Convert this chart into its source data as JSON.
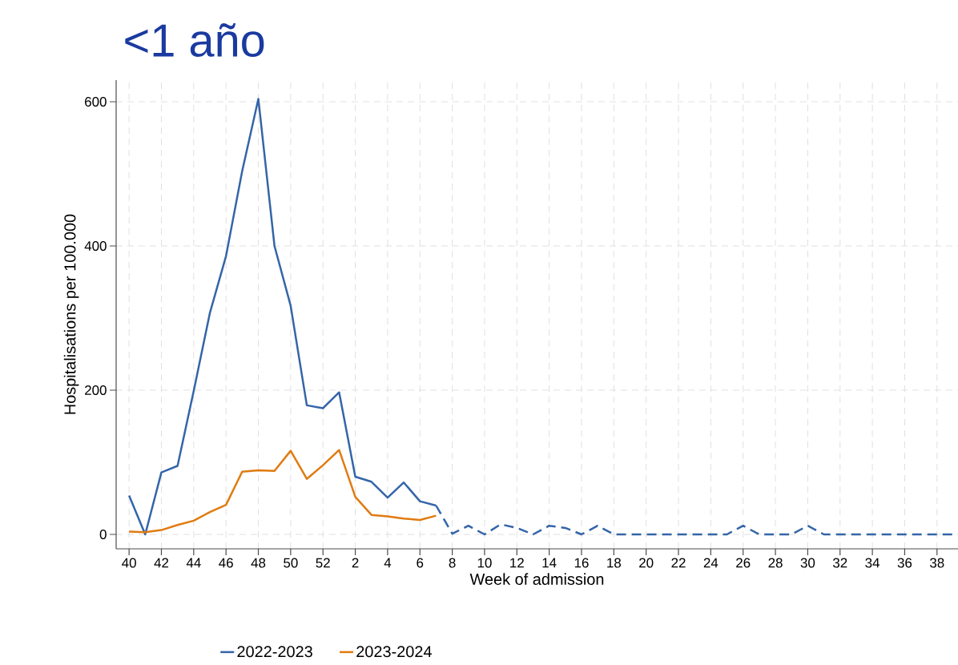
{
  "chart_data": {
    "type": "line",
    "title": "<1 año",
    "xlabel": "Week of admission",
    "ylabel": "Hospitalisations per 100.000",
    "categories": [
      "40",
      null,
      "42",
      null,
      "44",
      null,
      "46",
      null,
      "48",
      null,
      "50",
      null,
      "52",
      null,
      "2",
      null,
      "4",
      null,
      "6",
      null,
      "8",
      null,
      "10",
      null,
      "12",
      null,
      "14",
      null,
      "16",
      null,
      "18",
      null,
      "20",
      null,
      "22",
      null,
      "24",
      null,
      "26",
      null,
      "28",
      null,
      "30",
      null,
      "32",
      null,
      "34",
      null,
      "36",
      null,
      "38",
      null
    ],
    "series": [
      {
        "name": "2022-2023",
        "color": "#3465a8",
        "line_style": "solid",
        "values": [
          54,
          0,
          86,
          95,
          199,
          307,
          386,
          504,
          604,
          400,
          317,
          179,
          175,
          197,
          80,
          73,
          51,
          72,
          46,
          40,
          null,
          null,
          null,
          null,
          null,
          null,
          null,
          null,
          null,
          null,
          null,
          null,
          null,
          null,
          null,
          null,
          null,
          null,
          null,
          null,
          null,
          null,
          null,
          null,
          null,
          null,
          null,
          null,
          null,
          null,
          null,
          null
        ]
      },
      {
        "color": "#3465a8",
        "line_style": "dashed",
        "values": [
          null,
          null,
          null,
          null,
          null,
          null,
          null,
          null,
          null,
          null,
          null,
          null,
          null,
          null,
          null,
          null,
          null,
          null,
          null,
          40,
          1,
          12,
          0,
          14,
          9,
          0,
          12,
          9,
          0,
          12,
          0,
          0,
          0,
          0,
          0,
          0,
          0,
          0,
          12,
          0,
          0,
          0,
          12,
          0,
          0,
          0,
          0,
          0,
          0,
          0,
          0,
          0
        ]
      },
      {
        "name": "2023-2024",
        "color": "#e07b10",
        "line_style": "solid",
        "values": [
          4,
          3,
          6,
          13,
          19,
          31,
          41,
          87,
          89,
          88,
          116,
          77,
          96,
          117,
          52,
          27,
          25,
          22,
          20,
          26,
          null,
          null,
          null,
          null,
          null,
          null,
          null,
          null,
          null,
          null,
          null,
          null,
          null,
          null,
          null,
          null,
          null,
          null,
          null,
          null,
          null,
          null,
          null,
          null,
          null,
          null,
          null,
          null,
          null,
          null,
          null,
          null
        ]
      }
    ],
    "ylim": [
      -20,
      630
    ],
    "yticks": [
      0,
      200,
      400,
      600
    ],
    "grid": true,
    "legend": "bottom",
    "marker": "none"
  }
}
